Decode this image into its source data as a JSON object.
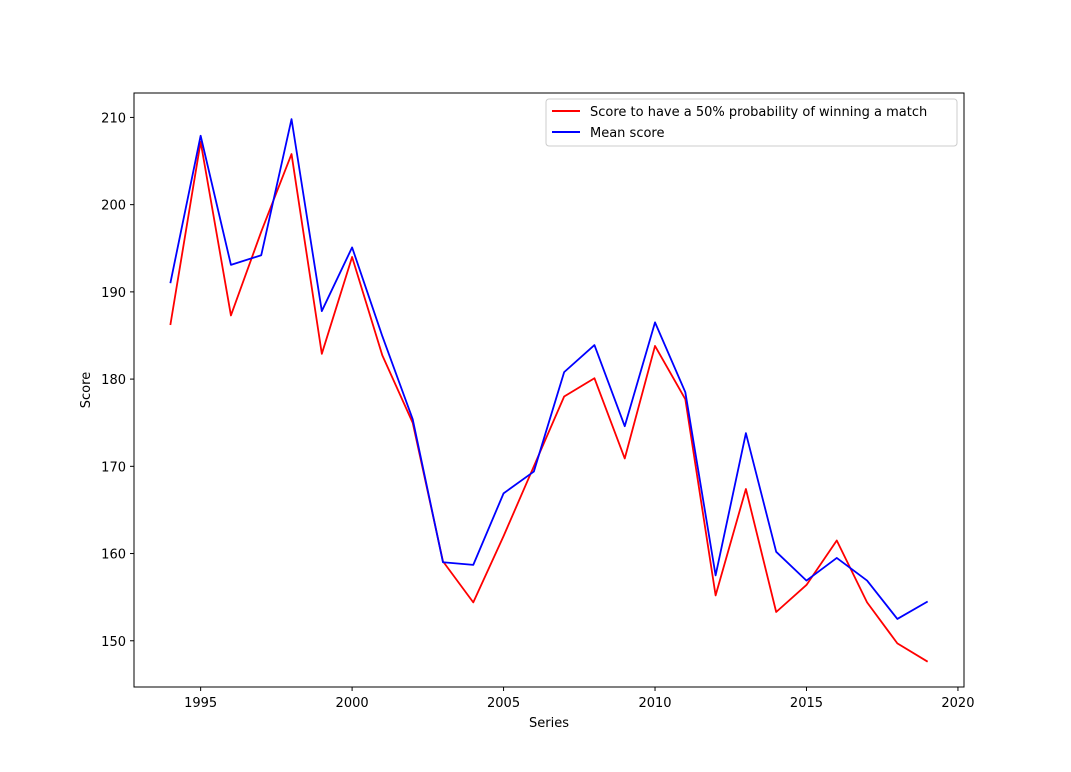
{
  "chart_data": {
    "type": "line",
    "xlabel": "Series",
    "ylabel": "Score",
    "xlim": [
      1992.8,
      2020.2
    ],
    "ylim": [
      144.7,
      212.8
    ],
    "xticks": [
      1995,
      2000,
      2005,
      2010,
      2015,
      2020
    ],
    "yticks": [
      150,
      160,
      170,
      180,
      190,
      200,
      210
    ],
    "grid": false,
    "legend_position": "top-right",
    "x": [
      1994,
      1995,
      1996,
      1997,
      1998,
      1999,
      2000,
      2001,
      2002,
      2003,
      2004,
      2005,
      2006,
      2007,
      2008,
      2009,
      2010,
      2011,
      2012,
      2013,
      2014,
      2015,
      2016,
      2017,
      2018,
      2019
    ],
    "series": [
      {
        "name": "Score to have a 50% probability of winning a match",
        "color": "#ff0000",
        "values": [
          186.2,
          207.2,
          187.3,
          196.9,
          205.8,
          182.9,
          194.0,
          182.7,
          175.0,
          159.1,
          154.4,
          162.0,
          170.0,
          178.0,
          180.1,
          170.9,
          183.8,
          177.7,
          155.2,
          167.4,
          153.3,
          156.4,
          161.5,
          154.4,
          149.7,
          147.6
        ]
      },
      {
        "name": "Mean score",
        "color": "#0000ff",
        "values": [
          191.0,
          207.9,
          193.1,
          194.2,
          209.8,
          187.8,
          195.1,
          184.9,
          175.4,
          159.0,
          158.7,
          166.9,
          169.4,
          180.8,
          183.9,
          174.6,
          186.5,
          178.5,
          157.5,
          173.8,
          160.2,
          156.9,
          159.5,
          156.9,
          152.5,
          154.5
        ]
      }
    ]
  }
}
